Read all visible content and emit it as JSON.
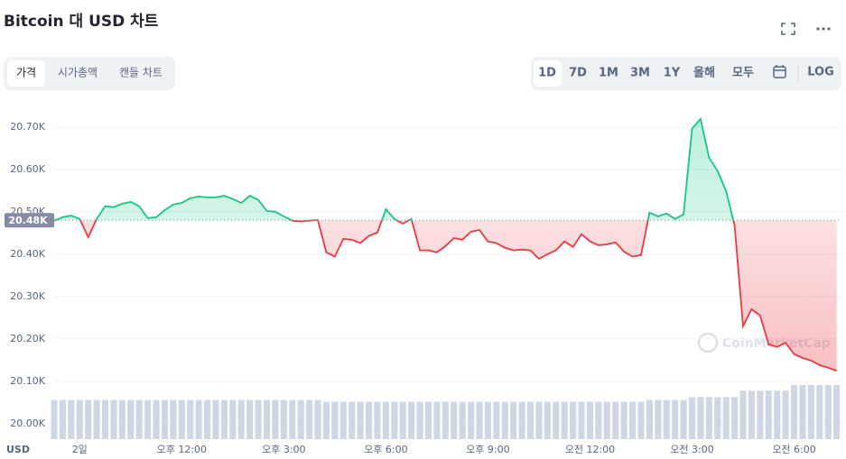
{
  "ui": {
    "title": "Bitcoin 대 USD 차트",
    "tabs": [
      "가격",
      "시가총액",
      "캔들 차트"
    ],
    "ranges": [
      "1D",
      "7D",
      "1M",
      "3M",
      "1Y",
      "올해",
      "모두"
    ],
    "log_button": "LOG",
    "watermark": "CoinMarketCap"
  },
  "chart_data": {
    "type": "line",
    "x_label": "USD",
    "categories": [
      null,
      null,
      null,
      "2일",
      null,
      null,
      null,
      null,
      null,
      null,
      null,
      null,
      null,
      null,
      null,
      "오후 12:00",
      null,
      null,
      null,
      null,
      null,
      null,
      null,
      null,
      null,
      null,
      null,
      "오후 3:00",
      null,
      null,
      null,
      null,
      null,
      null,
      null,
      null,
      null,
      null,
      null,
      "오후 6:00",
      null,
      null,
      null,
      null,
      null,
      null,
      null,
      null,
      null,
      null,
      null,
      "오후 9:00",
      null,
      null,
      null,
      null,
      null,
      null,
      null,
      null,
      null,
      null,
      null,
      "오전 12:00",
      null,
      null,
      null,
      null,
      null,
      null,
      null,
      null,
      null,
      null,
      null,
      "오전 3:00",
      null,
      null,
      null,
      null,
      null,
      null,
      null,
      null,
      null,
      null,
      null,
      "오전 6:00",
      null,
      null,
      null,
      null,
      null
    ],
    "values": [
      20479,
      20487,
      20491,
      20483,
      20440,
      20483,
      20513,
      20511,
      20519,
      20523,
      20513,
      20485,
      20487,
      20504,
      20517,
      20521,
      20532,
      20536,
      20534,
      20534,
      20538,
      20530,
      20521,
      20538,
      20528,
      20502,
      20500,
      20489,
      20479,
      20477,
      20479,
      20481,
      20404,
      20394,
      20436,
      20434,
      20426,
      20443,
      20451,
      20506,
      20483,
      20472,
      20483,
      20409,
      20409,
      20404,
      20419,
      20438,
      20434,
      20453,
      20457,
      20430,
      20426,
      20415,
      20409,
      20411,
      20409,
      20389,
      20400,
      20409,
      20430,
      20417,
      20447,
      20430,
      20421,
      20423,
      20428,
      20406,
      20394,
      20398,
      20498,
      20489,
      20496,
      20483,
      20494,
      20696,
      20719,
      20628,
      20596,
      20549,
      20468,
      20230,
      20270,
      20255,
      20187,
      20181,
      20191,
      20164,
      20155,
      20149,
      20138,
      20132,
      20125
    ],
    "volume": [
      42,
      42,
      42,
      42,
      42,
      42,
      42,
      42,
      42,
      42,
      42,
      42,
      42,
      42,
      42,
      42,
      42,
      42,
      42,
      42,
      42,
      42,
      42,
      42,
      42,
      42,
      42,
      42,
      42,
      42,
      42,
      42,
      40,
      40,
      40,
      40,
      40,
      40,
      40,
      40,
      40,
      40,
      40,
      40,
      40,
      40,
      40,
      40,
      40,
      40,
      40,
      40,
      40,
      40,
      40,
      40,
      40,
      40,
      40,
      40,
      40,
      40,
      40,
      40,
      40,
      40,
      40,
      40,
      40,
      40,
      42,
      42,
      42,
      42,
      42,
      45,
      45,
      45,
      45,
      45,
      45,
      52,
      52,
      52,
      52,
      52,
      52,
      58,
      58,
      58,
      58,
      58,
      58
    ],
    "up_color": "#16c784",
    "down_color": "#ea3943",
    "volume_color": "#cfd6e4",
    "ylim": [
      19957,
      20755
    ],
    "yticks": [
      {
        "value": 20000,
        "label": "20.00K"
      },
      {
        "value": 20100,
        "label": "20.10K"
      },
      {
        "value": 20200,
        "label": "20.20K"
      },
      {
        "value": 20300,
        "label": "20.30K"
      },
      {
        "value": 20400,
        "label": "20.40K"
      },
      {
        "value": 20500,
        "label": "20.50K"
      },
      {
        "value": 20600,
        "label": "20.60K"
      },
      {
        "value": 20700,
        "label": "20.70K"
      }
    ],
    "reference": {
      "value": 20480,
      "label": "20.48K"
    },
    "grid": true
  }
}
